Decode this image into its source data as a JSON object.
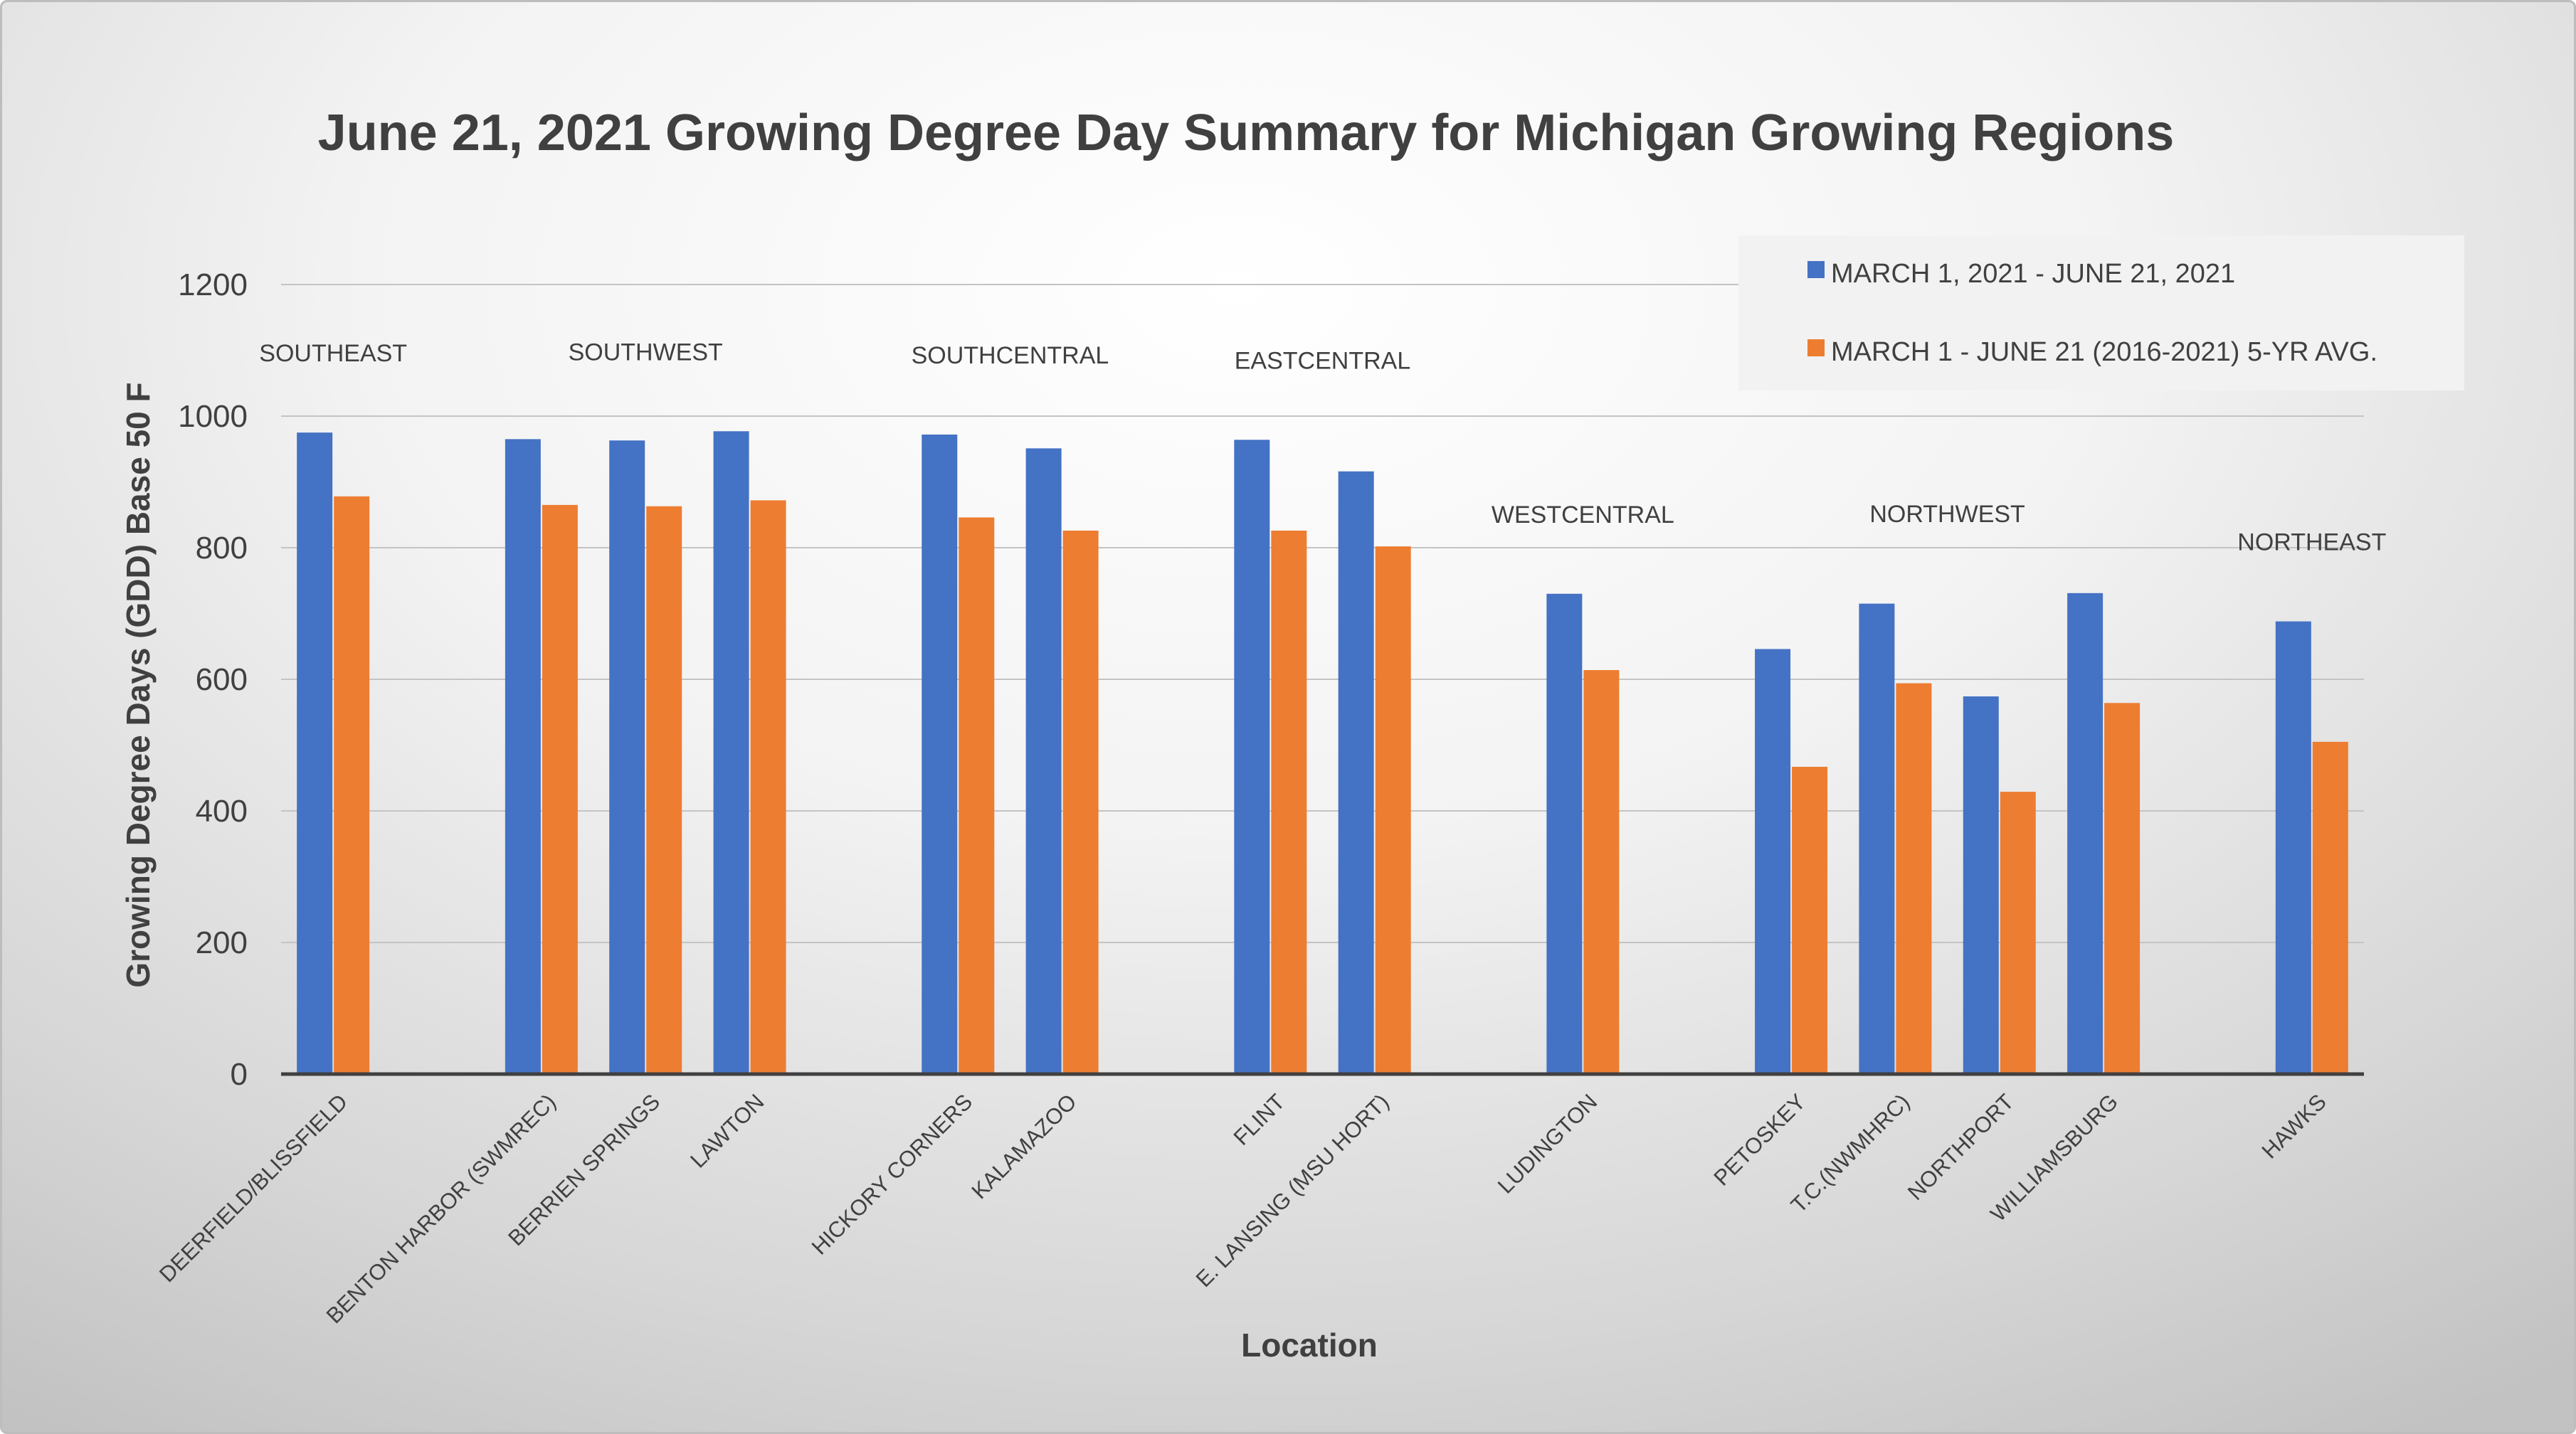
{
  "chart_data": {
    "type": "bar",
    "title": "June 21, 2021 Growing Degree Day Summary for Michigan Growing Regions",
    "xlabel": "Location",
    "ylabel": "Growing Degree Days (GDD) Base 50 F",
    "ylim": [
      0,
      1200
    ],
    "yticks": [
      "0",
      "200",
      "400",
      "600",
      "800",
      "1000",
      "1200"
    ],
    "grid": true,
    "legend_position": "top-right",
    "colors": [
      "#4472C4",
      "#ED7D31"
    ],
    "series": [
      {
        "name": "MARCH 1, 2021 - JUNE 21, 2021",
        "color": "#4472C4"
      },
      {
        "name": "MARCH 1 - JUNE 21 (2016-2021) 5-YR AVG.",
        "color": "#ED7D31"
      }
    ],
    "groups": [
      {
        "region": "SOUTHEAST",
        "stations": [
          {
            "name": "DEERFIELD/BLISSFIELD",
            "values": [
              975,
              878
            ]
          }
        ]
      },
      {
        "region": "SOUTHWEST",
        "stations": [
          {
            "name": "BENTON HARBOR (SWMREC)",
            "values": [
              965,
              865
            ]
          },
          {
            "name": "BERRIEN SPRINGS",
            "values": [
              963,
              863
            ]
          },
          {
            "name": "LAWTON",
            "values": [
              977,
              872
            ]
          }
        ]
      },
      {
        "region": "SOUTHCENTRAL",
        "stations": [
          {
            "name": "HICKORY CORNERS",
            "values": [
              972,
              846
            ]
          },
          {
            "name": "KALAMAZOO",
            "values": [
              951,
              826
            ]
          }
        ]
      },
      {
        "region": "EASTCENTRAL",
        "stations": [
          {
            "name": "FLINT",
            "values": [
              964,
              826
            ]
          },
          {
            "name": "E. LANSING (MSU HORT)",
            "values": [
              916,
              802
            ]
          }
        ]
      },
      {
        "region": "WESTCENTRAL",
        "stations": [
          {
            "name": "LUDINGTON",
            "values": [
              730,
              614
            ]
          }
        ]
      },
      {
        "region": "NORTHWEST",
        "stations": [
          {
            "name": "PETOSKEY",
            "values": [
              646,
              467
            ]
          },
          {
            "name": "T.C.(NWMHRC)",
            "values": [
              715,
              594
            ]
          },
          {
            "name": "NORTHPORT",
            "values": [
              574,
              429
            ]
          },
          {
            "name": "WILLIAMSBURG",
            "values": [
              731,
              564
            ]
          }
        ]
      },
      {
        "region": "NORTHEAST",
        "stations": [
          {
            "name": "HAWKS",
            "values": [
              688,
              505
            ]
          }
        ]
      }
    ]
  }
}
